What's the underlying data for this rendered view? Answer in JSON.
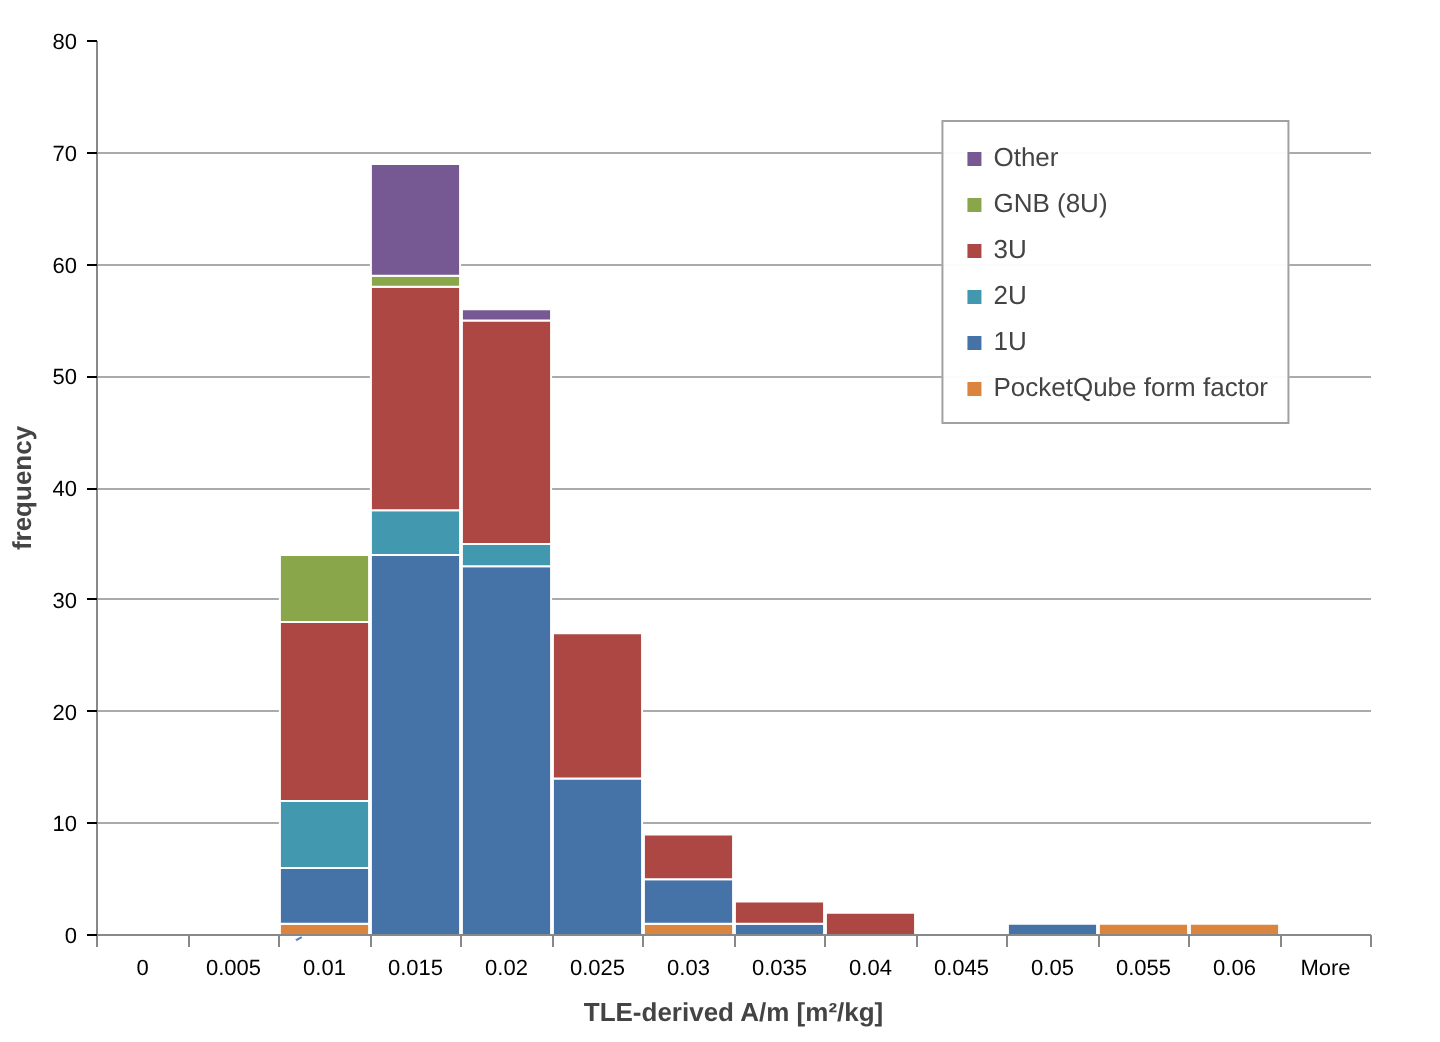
{
  "chart_data": {
    "type": "bar",
    "stacked": true,
    "xlabel": "TLE-derived A/m [m²/kg]",
    "ylabel": "frequency",
    "categories": [
      "0",
      "0.005",
      "0.01",
      "0.015",
      "0.02",
      "0.025",
      "0.03",
      "0.035",
      "0.04",
      "0.045",
      "0.05",
      "0.055",
      "0.06",
      "More"
    ],
    "series": [
      {
        "name": "PocketQube form factor",
        "color": "#db843d",
        "values": [
          0,
          0,
          1,
          0,
          0,
          0,
          1,
          0,
          0,
          0,
          0,
          1,
          1,
          0
        ]
      },
      {
        "name": "1U",
        "color": "#4572a7",
        "values": [
          0,
          0,
          5,
          34,
          33,
          14,
          4,
          1,
          0,
          0,
          1,
          0,
          0,
          0
        ]
      },
      {
        "name": "2U",
        "color": "#4198af",
        "values": [
          0,
          0,
          6,
          4,
          2,
          0,
          0,
          0,
          0,
          0,
          0,
          0,
          0,
          0
        ]
      },
      {
        "name": "3U",
        "color": "#ac4743",
        "values": [
          0,
          0,
          16,
          20,
          20,
          13,
          4,
          2,
          2,
          0,
          0,
          0,
          0,
          0
        ]
      },
      {
        "name": "GNB (8U)",
        "color": "#8aa64a",
        "values": [
          0,
          0,
          6,
          1,
          0,
          0,
          0,
          0,
          0,
          0,
          0,
          0,
          0,
          0
        ]
      },
      {
        "name": "Other",
        "color": "#765893",
        "values": [
          0,
          0,
          0,
          10,
          1,
          0,
          0,
          0,
          0,
          0,
          0,
          0,
          0,
          0
        ]
      }
    ],
    "ylim": [
      0,
      80
    ],
    "yticks": [
      0,
      10,
      20,
      30,
      40,
      50,
      60,
      70,
      80
    ],
    "grid": "y",
    "legend": "top right"
  }
}
